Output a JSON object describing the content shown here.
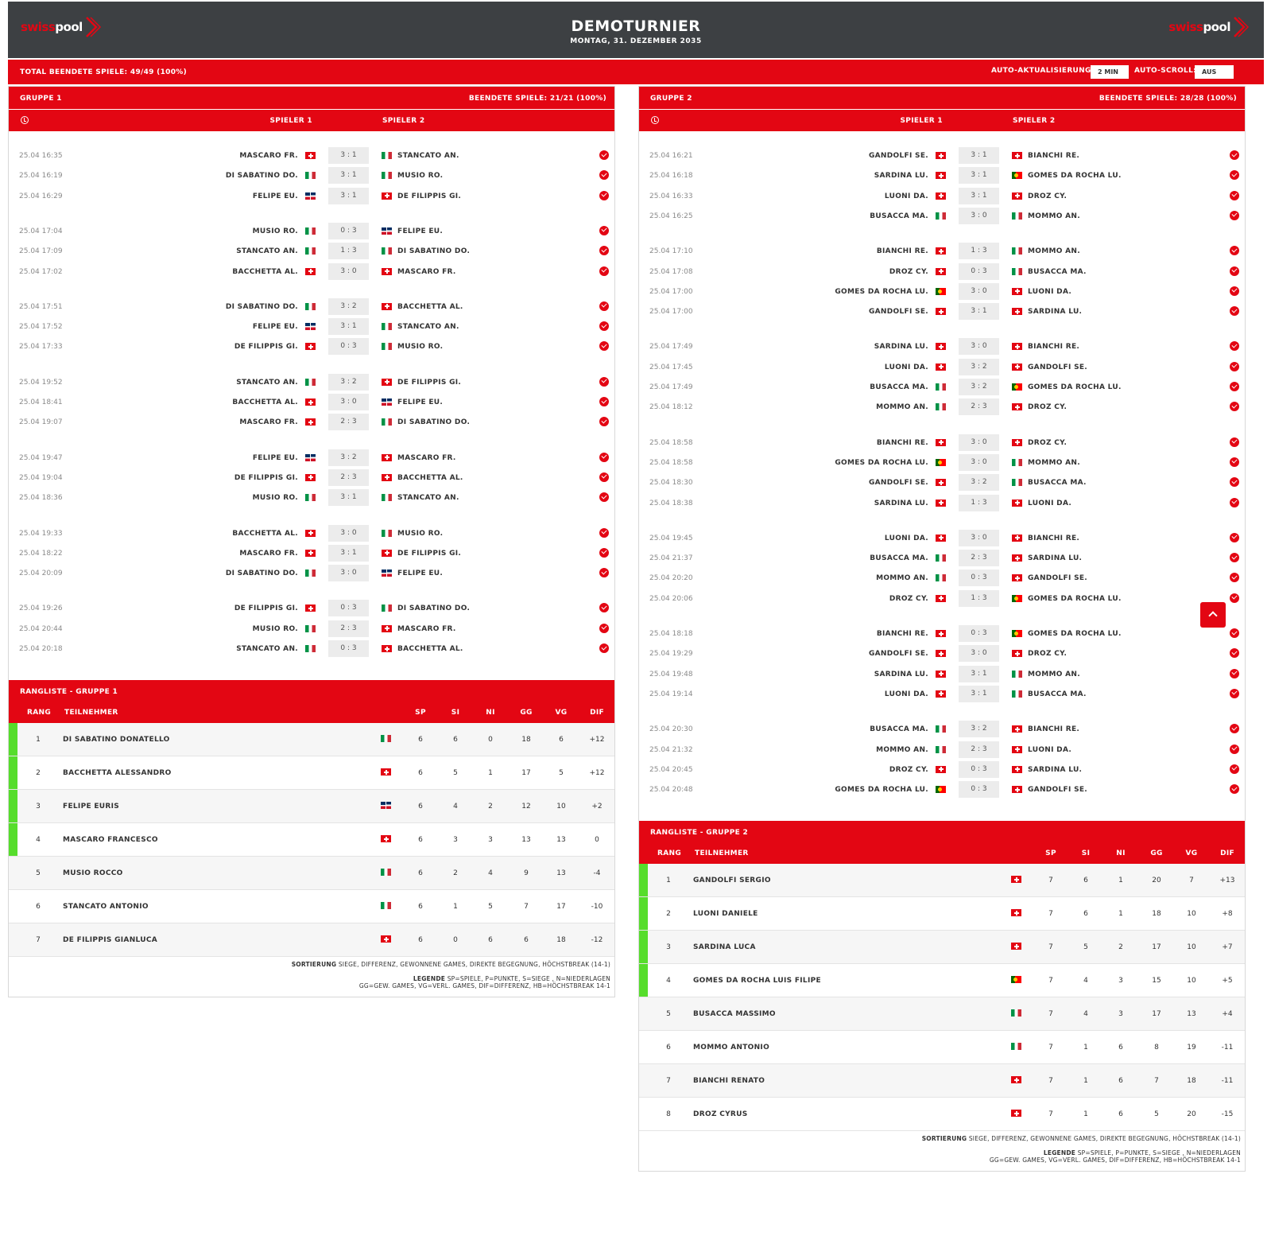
{
  "header": {
    "logo_red": "swiss",
    "logo_white": "pool",
    "title": "DEMOTURNIER",
    "date": "MONTAG, 31. DEZEMBER 2035"
  },
  "topbar": {
    "total": "TOTAL BEENDETE SPIELE: 49/49 (100%)",
    "auto_refresh_label": "AUTO-AKTUALISIERUNG:",
    "auto_refresh_value": "2 MIN",
    "auto_scroll_label": "AUTO-SCROLL:",
    "auto_scroll_value": "AUS"
  },
  "colors": {
    "accent": "#e30613",
    "header_bg": "#3d4043",
    "qualified": "#56dd2c"
  },
  "groups": [
    {
      "name": "GRUPPE 1",
      "done": "BEENDETE SPIELE: 21/21 (100%)",
      "col_p1": "SPIELER 1",
      "col_p2": "SPIELER 2",
      "rounds": [
        [
          {
            "time": "25.04 16:35",
            "p1": "MASCARO FR.",
            "f1": "ch",
            "score": "3 : 1",
            "p2": "STANCATO AN.",
            "f2": "it"
          },
          {
            "time": "25.04 16:19",
            "p1": "DI SABATINO DO.",
            "f1": "it",
            "score": "3 : 1",
            "p2": "MUSIO RO.",
            "f2": "it"
          },
          {
            "time": "25.04 16:29",
            "p1": "FELIPE EU.",
            "f1": "do",
            "score": "3 : 1",
            "p2": "DE FILIPPIS GI.",
            "f2": "ch"
          }
        ],
        [
          {
            "time": "25.04 17:04",
            "p1": "MUSIO RO.",
            "f1": "it",
            "score": "0 : 3",
            "p2": "FELIPE EU.",
            "f2": "do"
          },
          {
            "time": "25.04 17:09",
            "p1": "STANCATO AN.",
            "f1": "it",
            "score": "1 : 3",
            "p2": "DI SABATINO DO.",
            "f2": "it"
          },
          {
            "time": "25.04 17:02",
            "p1": "BACCHETTA AL.",
            "f1": "ch",
            "score": "3 : 0",
            "p2": "MASCARO FR.",
            "f2": "ch"
          }
        ],
        [
          {
            "time": "25.04 17:51",
            "p1": "DI SABATINO DO.",
            "f1": "it",
            "score": "3 : 2",
            "p2": "BACCHETTA AL.",
            "f2": "ch"
          },
          {
            "time": "25.04 17:52",
            "p1": "FELIPE EU.",
            "f1": "do",
            "score": "3 : 1",
            "p2": "STANCATO AN.",
            "f2": "it"
          },
          {
            "time": "25.04 17:33",
            "p1": "DE FILIPPIS GI.",
            "f1": "ch",
            "score": "0 : 3",
            "p2": "MUSIO RO.",
            "f2": "it"
          }
        ],
        [
          {
            "time": "25.04 19:52",
            "p1": "STANCATO AN.",
            "f1": "it",
            "score": "3 : 2",
            "p2": "DE FILIPPIS GI.",
            "f2": "ch"
          },
          {
            "time": "25.04 18:41",
            "p1": "BACCHETTA AL.",
            "f1": "ch",
            "score": "3 : 0",
            "p2": "FELIPE EU.",
            "f2": "do"
          },
          {
            "time": "25.04 19:07",
            "p1": "MASCARO FR.",
            "f1": "ch",
            "score": "2 : 3",
            "p2": "DI SABATINO DO.",
            "f2": "it"
          }
        ],
        [
          {
            "time": "25.04 19:47",
            "p1": "FELIPE EU.",
            "f1": "do",
            "score": "3 : 2",
            "p2": "MASCARO FR.",
            "f2": "ch"
          },
          {
            "time": "25.04 19:04",
            "p1": "DE FILIPPIS GI.",
            "f1": "ch",
            "score": "2 : 3",
            "p2": "BACCHETTA AL.",
            "f2": "ch"
          },
          {
            "time": "25.04 18:36",
            "p1": "MUSIO RO.",
            "f1": "it",
            "score": "3 : 1",
            "p2": "STANCATO AN.",
            "f2": "it"
          }
        ],
        [
          {
            "time": "25.04 19:33",
            "p1": "BACCHETTA AL.",
            "f1": "ch",
            "score": "3 : 0",
            "p2": "MUSIO RO.",
            "f2": "it"
          },
          {
            "time": "25.04 18:22",
            "p1": "MASCARO FR.",
            "f1": "ch",
            "score": "3 : 1",
            "p2": "DE FILIPPIS GI.",
            "f2": "ch"
          },
          {
            "time": "25.04 20:09",
            "p1": "DI SABATINO DO.",
            "f1": "it",
            "score": "3 : 0",
            "p2": "FELIPE EU.",
            "f2": "do"
          }
        ],
        [
          {
            "time": "25.04 19:26",
            "p1": "DE FILIPPIS GI.",
            "f1": "ch",
            "score": "0 : 3",
            "p2": "DI SABATINO DO.",
            "f2": "it"
          },
          {
            "time": "25.04 20:44",
            "p1": "MUSIO RO.",
            "f1": "it",
            "score": "2 : 3",
            "p2": "MASCARO FR.",
            "f2": "ch"
          },
          {
            "time": "25.04 20:18",
            "p1": "STANCATO AN.",
            "f1": "it",
            "score": "0 : 3",
            "p2": "BACCHETTA AL.",
            "f2": "ch"
          }
        ]
      ],
      "ranking_title": "RANGLISTE - GRUPPE 1",
      "ranking_cols": {
        "rang": "RANG",
        "teil": "TEILNEHMER",
        "sp": "SP",
        "si": "SI",
        "ni": "NI",
        "gg": "GG",
        "vg": "VG",
        "dif": "DIF"
      },
      "ranking": [
        {
          "rank": "1",
          "name": "DI SABATINO DONATELLO",
          "flag": "it",
          "sp": "6",
          "si": "6",
          "ni": "0",
          "gg": "18",
          "vg": "6",
          "dif": "+12",
          "qualified": true
        },
        {
          "rank": "2",
          "name": "BACCHETTA ALESSANDRO",
          "flag": "ch",
          "sp": "6",
          "si": "5",
          "ni": "1",
          "gg": "17",
          "vg": "5",
          "dif": "+12",
          "qualified": true
        },
        {
          "rank": "3",
          "name": "FELIPE EURIS",
          "flag": "do",
          "sp": "6",
          "si": "4",
          "ni": "2",
          "gg": "12",
          "vg": "10",
          "dif": "+2",
          "qualified": true
        },
        {
          "rank": "4",
          "name": "MASCARO FRANCESCO",
          "flag": "ch",
          "sp": "6",
          "si": "3",
          "ni": "3",
          "gg": "13",
          "vg": "13",
          "dif": "0",
          "qualified": true
        },
        {
          "rank": "5",
          "name": "MUSIO ROCCO",
          "flag": "it",
          "sp": "6",
          "si": "2",
          "ni": "4",
          "gg": "9",
          "vg": "13",
          "dif": "-4",
          "qualified": false
        },
        {
          "rank": "6",
          "name": "STANCATO ANTONIO",
          "flag": "it",
          "sp": "6",
          "si": "1",
          "ni": "5",
          "gg": "7",
          "vg": "17",
          "dif": "-10",
          "qualified": false
        },
        {
          "rank": "7",
          "name": "DE FILIPPIS GIANLUCA",
          "flag": "ch",
          "sp": "6",
          "si": "0",
          "ni": "6",
          "gg": "6",
          "vg": "18",
          "dif": "-12",
          "qualified": false
        }
      ],
      "sort_label": "SORTIERUNG",
      "sort_text": "SIEGE, DIFFERENZ, GEWONNENE GAMES, DIREKTE BEGEGNUNG, HÖCHSTBREAK (14-1)",
      "legend_label": "LEGENDE",
      "legend_line1": "SP=SPIELE, P=PUNKTE, S=SIEGE , N=NIEDERLAGEN",
      "legend_line2": "GG=GEW. GAMES, VG=VERL. GAMES, DIF=DIFFERENZ, HB=HÖCHSTBREAK 14-1"
    },
    {
      "name": "GRUPPE 2",
      "done": "BEENDETE SPIELE: 28/28 (100%)",
      "col_p1": "SPIELER 1",
      "col_p2": "SPIELER 2",
      "rounds": [
        [
          {
            "time": "25.04 16:21",
            "p1": "GANDOLFI SE.",
            "f1": "ch",
            "score": "3 : 1",
            "p2": "BIANCHI RE.",
            "f2": "ch"
          },
          {
            "time": "25.04 16:18",
            "p1": "SARDINA LU.",
            "f1": "ch",
            "score": "3 : 1",
            "p2": "GOMES DA ROCHA LU.",
            "f2": "pt"
          },
          {
            "time": "25.04 16:33",
            "p1": "LUONI DA.",
            "f1": "ch",
            "score": "3 : 1",
            "p2": "DROZ CY.",
            "f2": "ch"
          },
          {
            "time": "25.04 16:25",
            "p1": "BUSACCA MA.",
            "f1": "it",
            "score": "3 : 0",
            "p2": "MOMMO AN.",
            "f2": "it"
          }
        ],
        [
          {
            "time": "25.04 17:10",
            "p1": "BIANCHI RE.",
            "f1": "ch",
            "score": "1 : 3",
            "p2": "MOMMO AN.",
            "f2": "it"
          },
          {
            "time": "25.04 17:08",
            "p1": "DROZ CY.",
            "f1": "ch",
            "score": "0 : 3",
            "p2": "BUSACCA MA.",
            "f2": "it"
          },
          {
            "time": "25.04 17:00",
            "p1": "GOMES DA ROCHA LU.",
            "f1": "pt",
            "score": "3 : 0",
            "p2": "LUONI DA.",
            "f2": "ch"
          },
          {
            "time": "25.04 17:00",
            "p1": "GANDOLFI SE.",
            "f1": "ch",
            "score": "3 : 1",
            "p2": "SARDINA LU.",
            "f2": "ch"
          }
        ],
        [
          {
            "time": "25.04 17:49",
            "p1": "SARDINA LU.",
            "f1": "ch",
            "score": "3 : 0",
            "p2": "BIANCHI RE.",
            "f2": "ch"
          },
          {
            "time": "25.04 17:45",
            "p1": "LUONI DA.",
            "f1": "ch",
            "score": "3 : 2",
            "p2": "GANDOLFI SE.",
            "f2": "ch"
          },
          {
            "time": "25.04 17:49",
            "p1": "BUSACCA MA.",
            "f1": "it",
            "score": "3 : 2",
            "p2": "GOMES DA ROCHA LU.",
            "f2": "pt"
          },
          {
            "time": "25.04 18:12",
            "p1": "MOMMO AN.",
            "f1": "it",
            "score": "2 : 3",
            "p2": "DROZ CY.",
            "f2": "ch"
          }
        ],
        [
          {
            "time": "25.04 18:58",
            "p1": "BIANCHI RE.",
            "f1": "ch",
            "score": "3 : 0",
            "p2": "DROZ CY.",
            "f2": "ch"
          },
          {
            "time": "25.04 18:58",
            "p1": "GOMES DA ROCHA LU.",
            "f1": "pt",
            "score": "3 : 0",
            "p2": "MOMMO AN.",
            "f2": "it"
          },
          {
            "time": "25.04 18:30",
            "p1": "GANDOLFI SE.",
            "f1": "ch",
            "score": "3 : 2",
            "p2": "BUSACCA MA.",
            "f2": "it"
          },
          {
            "time": "25.04 18:38",
            "p1": "SARDINA LU.",
            "f1": "ch",
            "score": "1 : 3",
            "p2": "LUONI DA.",
            "f2": "ch"
          }
        ],
        [
          {
            "time": "25.04 19:45",
            "p1": "LUONI DA.",
            "f1": "ch",
            "score": "3 : 0",
            "p2": "BIANCHI RE.",
            "f2": "ch"
          },
          {
            "time": "25.04 21:37",
            "p1": "BUSACCA MA.",
            "f1": "it",
            "score": "2 : 3",
            "p2": "SARDINA LU.",
            "f2": "ch"
          },
          {
            "time": "25.04 20:20",
            "p1": "MOMMO AN.",
            "f1": "it",
            "score": "0 : 3",
            "p2": "GANDOLFI SE.",
            "f2": "ch"
          },
          {
            "time": "25.04 20:06",
            "p1": "DROZ CY.",
            "f1": "ch",
            "score": "1 : 3",
            "p2": "GOMES DA ROCHA LU.",
            "f2": "pt"
          }
        ],
        [
          {
            "time": "25.04 18:18",
            "p1": "BIANCHI RE.",
            "f1": "ch",
            "score": "0 : 3",
            "p2": "GOMES DA ROCHA LU.",
            "f2": "pt"
          },
          {
            "time": "25.04 19:29",
            "p1": "GANDOLFI SE.",
            "f1": "ch",
            "score": "3 : 0",
            "p2": "DROZ CY.",
            "f2": "ch"
          },
          {
            "time": "25.04 19:48",
            "p1": "SARDINA LU.",
            "f1": "ch",
            "score": "3 : 1",
            "p2": "MOMMO AN.",
            "f2": "it"
          },
          {
            "time": "25.04 19:14",
            "p1": "LUONI DA.",
            "f1": "ch",
            "score": "3 : 1",
            "p2": "BUSACCA MA.",
            "f2": "it"
          }
        ],
        [
          {
            "time": "25.04 20:30",
            "p1": "BUSACCA MA.",
            "f1": "it",
            "score": "3 : 2",
            "p2": "BIANCHI RE.",
            "f2": "ch"
          },
          {
            "time": "25.04 21:32",
            "p1": "MOMMO AN.",
            "f1": "it",
            "score": "2 : 3",
            "p2": "LUONI DA.",
            "f2": "ch"
          },
          {
            "time": "25.04 20:45",
            "p1": "DROZ CY.",
            "f1": "ch",
            "score": "0 : 3",
            "p2": "SARDINA LU.",
            "f2": "ch"
          },
          {
            "time": "25.04 20:48",
            "p1": "GOMES DA ROCHA LU.",
            "f1": "pt",
            "score": "0 : 3",
            "p2": "GANDOLFI SE.",
            "f2": "ch"
          }
        ]
      ],
      "ranking_title": "RANGLISTE - GRUPPE 2",
      "ranking_cols": {
        "rang": "RANG",
        "teil": "TEILNEHMER",
        "sp": "SP",
        "si": "SI",
        "ni": "NI",
        "gg": "GG",
        "vg": "VG",
        "dif": "DIF"
      },
      "ranking": [
        {
          "rank": "1",
          "name": "GANDOLFI SERGIO",
          "flag": "ch",
          "sp": "7",
          "si": "6",
          "ni": "1",
          "gg": "20",
          "vg": "7",
          "dif": "+13",
          "qualified": true
        },
        {
          "rank": "2",
          "name": "LUONI DANIELE",
          "flag": "ch",
          "sp": "7",
          "si": "6",
          "ni": "1",
          "gg": "18",
          "vg": "10",
          "dif": "+8",
          "qualified": true
        },
        {
          "rank": "3",
          "name": "SARDINA LUCA",
          "flag": "ch",
          "sp": "7",
          "si": "5",
          "ni": "2",
          "gg": "17",
          "vg": "10",
          "dif": "+7",
          "qualified": true
        },
        {
          "rank": "4",
          "name": "GOMES DA ROCHA LUIS FILIPE",
          "flag": "pt",
          "sp": "7",
          "si": "4",
          "ni": "3",
          "gg": "15",
          "vg": "10",
          "dif": "+5",
          "qualified": true
        },
        {
          "rank": "5",
          "name": "BUSACCA MASSIMO",
          "flag": "it",
          "sp": "7",
          "si": "4",
          "ni": "3",
          "gg": "17",
          "vg": "13",
          "dif": "+4",
          "qualified": false
        },
        {
          "rank": "6",
          "name": "MOMMO ANTONIO",
          "flag": "it",
          "sp": "7",
          "si": "1",
          "ni": "6",
          "gg": "8",
          "vg": "19",
          "dif": "-11",
          "qualified": false
        },
        {
          "rank": "7",
          "name": "BIANCHI RENATO",
          "flag": "ch",
          "sp": "7",
          "si": "1",
          "ni": "6",
          "gg": "7",
          "vg": "18",
          "dif": "-11",
          "qualified": false
        },
        {
          "rank": "8",
          "name": "DROZ CYRUS",
          "flag": "ch",
          "sp": "7",
          "si": "1",
          "ni": "6",
          "gg": "5",
          "vg": "20",
          "dif": "-15",
          "qualified": false
        }
      ],
      "sort_label": "SORTIERUNG",
      "sort_text": "SIEGE, DIFFERENZ, GEWONNENE GAMES, DIREKTE BEGEGNUNG, HÖCHSTBREAK (14-1)",
      "legend_label": "LEGENDE",
      "legend_line1": "SP=SPIELE, P=PUNKTE, S=SIEGE , N=NIEDERLAGEN",
      "legend_line2": "GG=GEW. GAMES, VG=VERL. GAMES, DIF=DIFFERENZ, HB=HÖCHSTBREAK 14-1"
    }
  ],
  "scroll_top_icon": "chevron-up-icon"
}
